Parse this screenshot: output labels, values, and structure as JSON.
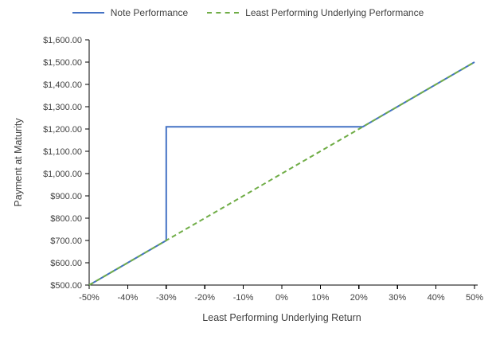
{
  "legend": {
    "items": [
      {
        "label": "Note Performance",
        "color": "#4472C4",
        "line_style": "solid"
      },
      {
        "label": "Least Performing Underlying Performance",
        "color": "#70AD47",
        "line_style": "dashed"
      }
    ]
  },
  "chart_data": {
    "type": "line",
    "title": "",
    "xlabel": "Least Performing Underlying Return",
    "ylabel": "Payment at Maturity",
    "xlim": [
      -50,
      50
    ],
    "ylim": [
      500,
      1600
    ],
    "grid": false,
    "legend_position": "top-center",
    "axis_color": "#000000",
    "label_color": "#404040",
    "x_ticks": [
      {
        "v": -50,
        "label": "-50%"
      },
      {
        "v": -40,
        "label": "-40%"
      },
      {
        "v": -30,
        "label": "-30%"
      },
      {
        "v": -20,
        "label": "-20%"
      },
      {
        "v": -10,
        "label": "-10%"
      },
      {
        "v": 0,
        "label": "0%"
      },
      {
        "v": 10,
        "label": "10%"
      },
      {
        "v": 20,
        "label": "20%"
      },
      {
        "v": 30,
        "label": "30%"
      },
      {
        "v": 40,
        "label": "40%"
      },
      {
        "v": 50,
        "label": "50%"
      }
    ],
    "y_ticks": [
      {
        "v": 500,
        "label": "$500.00"
      },
      {
        "v": 600,
        "label": "$600.00"
      },
      {
        "v": 700,
        "label": "$700.00"
      },
      {
        "v": 800,
        "label": "$800.00"
      },
      {
        "v": 900,
        "label": "$900.00"
      },
      {
        "v": 1000,
        "label": "$1,000.00"
      },
      {
        "v": 1100,
        "label": "$1,100.00"
      },
      {
        "v": 1200,
        "label": "$1,200.00"
      },
      {
        "v": 1300,
        "label": "$1,300.00"
      },
      {
        "v": 1400,
        "label": "$1,400.00"
      },
      {
        "v": 1500,
        "label": "$1,500.00"
      },
      {
        "v": 1600,
        "label": "$1,600.00"
      }
    ],
    "series": [
      {
        "name": "Note Performance",
        "color": "#4472C4",
        "line_style": "solid",
        "points": [
          [
            -50,
            500
          ],
          [
            -30,
            700
          ],
          [
            -30,
            1210
          ],
          [
            21,
            1210
          ],
          [
            50,
            1500
          ]
        ]
      },
      {
        "name": "Least Performing Underlying Performance",
        "color": "#70AD47",
        "line_style": "dashed",
        "points": [
          [
            -50,
            500
          ],
          [
            50,
            1500
          ]
        ]
      }
    ]
  }
}
